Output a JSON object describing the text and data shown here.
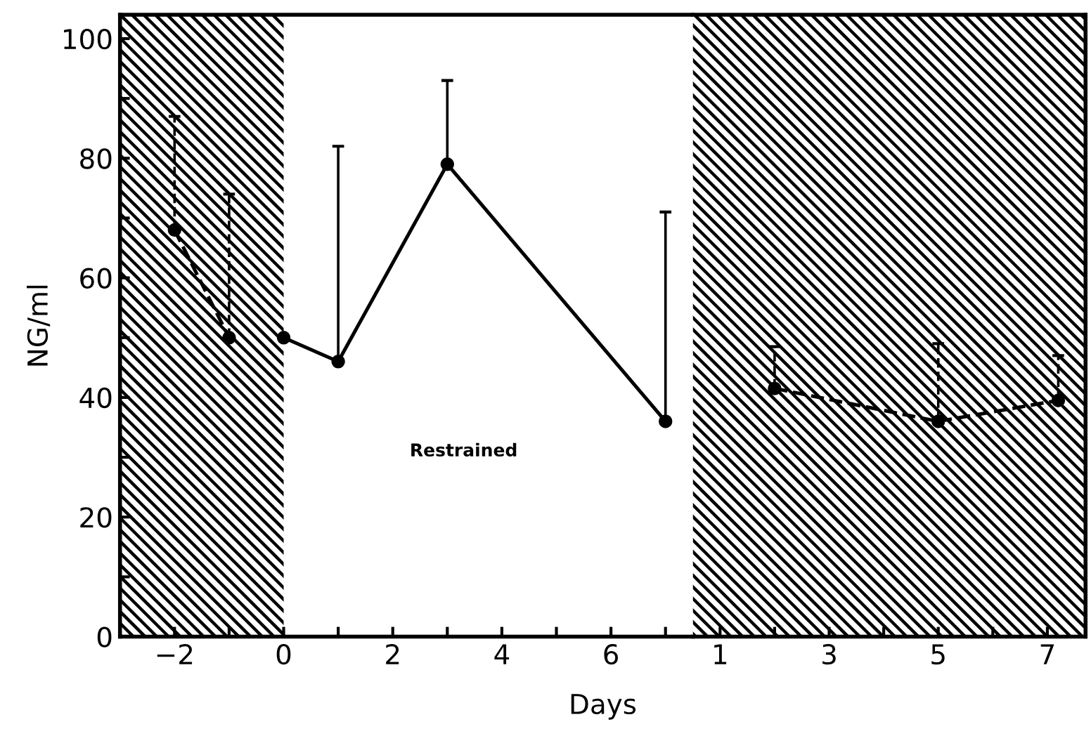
{
  "chart_data": [
    {
      "type": "line",
      "xlabel": "Days",
      "ylabel": "NG/ml",
      "xlim": [
        -3,
        7.5
      ],
      "ylim": [
        0,
        104
      ],
      "xticks": [
        {
          "value": -2,
          "label": "−2"
        },
        {
          "value": -1,
          "label": null
        },
        0,
        {
          "value": 1,
          "label": null
        },
        2,
        {
          "value": 3,
          "label": null
        },
        4,
        {
          "value": 5,
          "label": null
        },
        6,
        {
          "value": 7,
          "label": null
        }
      ],
      "yticks": [
        0,
        {
          "value": 10,
          "label": null
        },
        20,
        {
          "value": 30,
          "label": null
        },
        40,
        {
          "value": 50,
          "label": null
        },
        60,
        {
          "value": 70,
          "label": null
        },
        80,
        {
          "value": 90,
          "label": null
        },
        100
      ],
      "series": [
        {
          "color": "#000000",
          "line_style": "dashed",
          "x": [
            -2,
            -1
          ],
          "values": [
            68,
            50
          ],
          "errors": [
            [
              68,
              87
            ],
            [
              50,
              74
            ]
          ]
        },
        {
          "color": "#000000",
          "line_style": "solid",
          "x": [
            0,
            1,
            3,
            7
          ],
          "values": [
            50,
            46,
            79,
            36
          ],
          "errors": [
            null,
            [
              46,
              82
            ],
            [
              79,
              93
            ],
            [
              36,
              71
            ]
          ]
        }
      ],
      "bands": [
        {
          "axis": "x",
          "from": -3,
          "to": 0,
          "color": "#000000"
        }
      ],
      "annotations": [
        "Restrained"
      ],
      "marker": "circle",
      "grid": false,
      "legend": false
    },
    {
      "type": "line",
      "xlim": [
        0.5,
        7.7
      ],
      "ylim": [
        0,
        104
      ],
      "xticks": [
        1,
        {
          "value": 2,
          "label": null
        },
        3,
        {
          "value": 4,
          "label": null
        },
        5,
        {
          "value": 6,
          "label": null
        },
        7
      ],
      "series": [
        {
          "color": "#000000",
          "line_style": "dashed",
          "x": [
            2,
            5,
            7.2
          ],
          "values": [
            41.5,
            36,
            39.5
          ],
          "errors": [
            [
              41.5,
              48.5
            ],
            [
              36,
              49
            ],
            [
              39.5,
              47
            ]
          ]
        }
      ],
      "bands": [
        {
          "axis": "x",
          "from": 0.5,
          "to": 7.7,
          "color": "#000000"
        }
      ],
      "tick_labels": "x",
      "marker": "circle",
      "grid": false,
      "legend": false
    }
  ]
}
